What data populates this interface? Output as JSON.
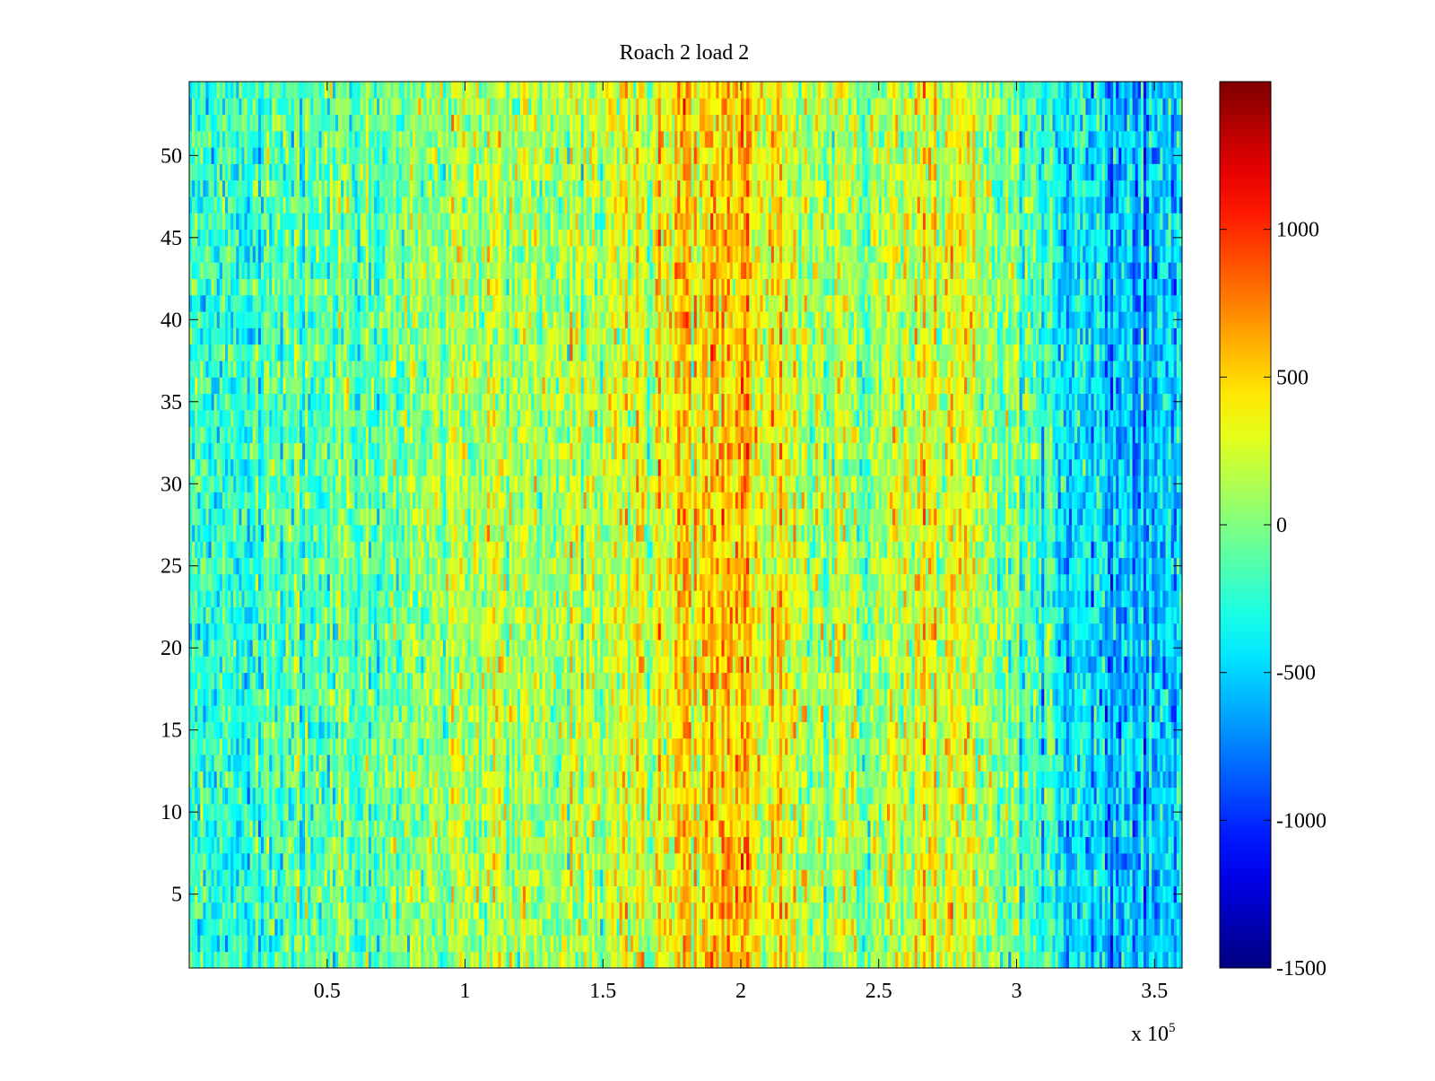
{
  "chart_data": {
    "type": "heatmap",
    "title": "Roach 2 load 2",
    "xlabel": "",
    "ylabel": "",
    "x_multiplier_label": "x 10",
    "x_multiplier_exponent": "5",
    "xlim": [
      0,
      3.6
    ],
    "ylim": [
      0.5,
      54.5
    ],
    "x_ticks": [
      0.5,
      1,
      1.5,
      2,
      2.5,
      3,
      3.5
    ],
    "x_tick_labels": [
      "0.5",
      "1",
      "1.5",
      "2",
      "2.5",
      "3",
      "3.5"
    ],
    "y_ticks": [
      5,
      10,
      15,
      20,
      25,
      30,
      35,
      40,
      45,
      50
    ],
    "y_tick_labels": [
      "5",
      "10",
      "15",
      "20",
      "25",
      "30",
      "35",
      "40",
      "45",
      "50"
    ],
    "rows": 54,
    "colormap": "jet",
    "clim": [
      -1500,
      1500
    ],
    "colorbar_ticks": [
      1000,
      500,
      0,
      -500,
      -1000,
      -1500
    ],
    "colorbar_tick_labels": [
      "1000",
      "500",
      "0",
      "-500",
      "-1000",
      "-1500"
    ],
    "column_profile": {
      "x": [
        0,
        0.3,
        0.6,
        0.9,
        1.0,
        1.2,
        1.5,
        1.75,
        1.9,
        1.95,
        2.0,
        2.1,
        2.3,
        2.5,
        2.65,
        2.8,
        2.95,
        3.1,
        3.2,
        3.35,
        3.5,
        3.6
      ],
      "mean": [
        -300,
        -200,
        -50,
        50,
        150,
        100,
        200,
        350,
        550,
        600,
        550,
        350,
        150,
        100,
        300,
        300,
        50,
        -200,
        -450,
        -650,
        -450,
        -400
      ]
    },
    "grid": false,
    "colorbar_position": "right"
  }
}
